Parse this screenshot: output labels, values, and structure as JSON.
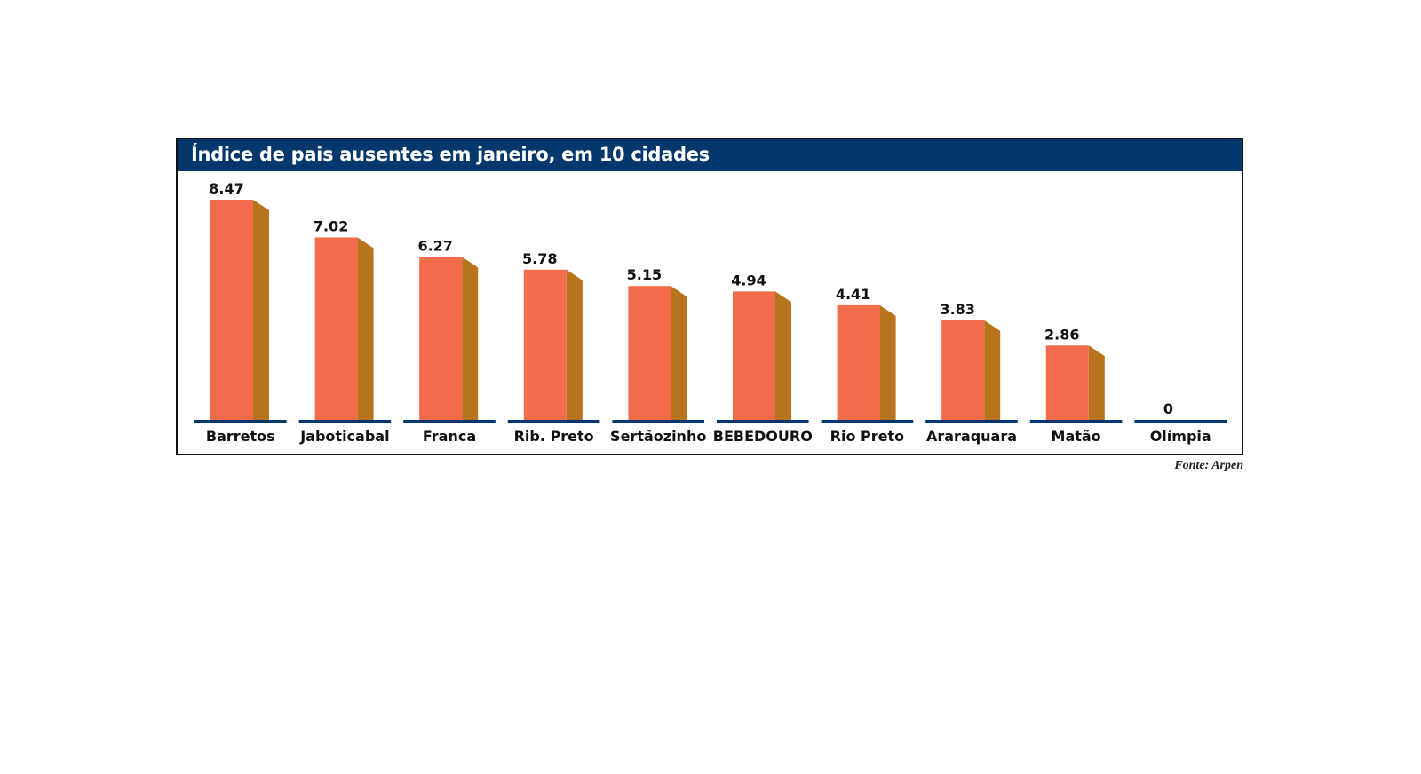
{
  "colors": {
    "header_bg": "#04376b",
    "bar_front": "#f26b4b",
    "bar_side": "#b8741c",
    "bar_top": "#f57a5a",
    "baseline": "#04376b"
  },
  "chart_data": {
    "type": "bar",
    "title": "Índice de pais ausentes em janeiro, em 10 cidades",
    "categories": [
      "Barretos",
      "Jaboticabal",
      "Franca",
      "Rib. Preto",
      "Sertãozinho",
      "BEBEDOURO",
      "Rio Preto",
      "Araraquara",
      "Matão",
      "Olímpia"
    ],
    "values": [
      8.47,
      7.02,
      6.27,
      5.78,
      5.15,
      4.94,
      4.41,
      3.83,
      2.86,
      0
    ],
    "value_labels": [
      "8.47",
      "7.02",
      "6.27",
      "5.78",
      "5.15",
      "4.94",
      "4.41",
      "3.83",
      "2.86",
      "0"
    ],
    "xlabel": "",
    "ylabel": "",
    "ylim": [
      0,
      8.47
    ],
    "grid": false,
    "source": "Fonte: Arpen"
  }
}
